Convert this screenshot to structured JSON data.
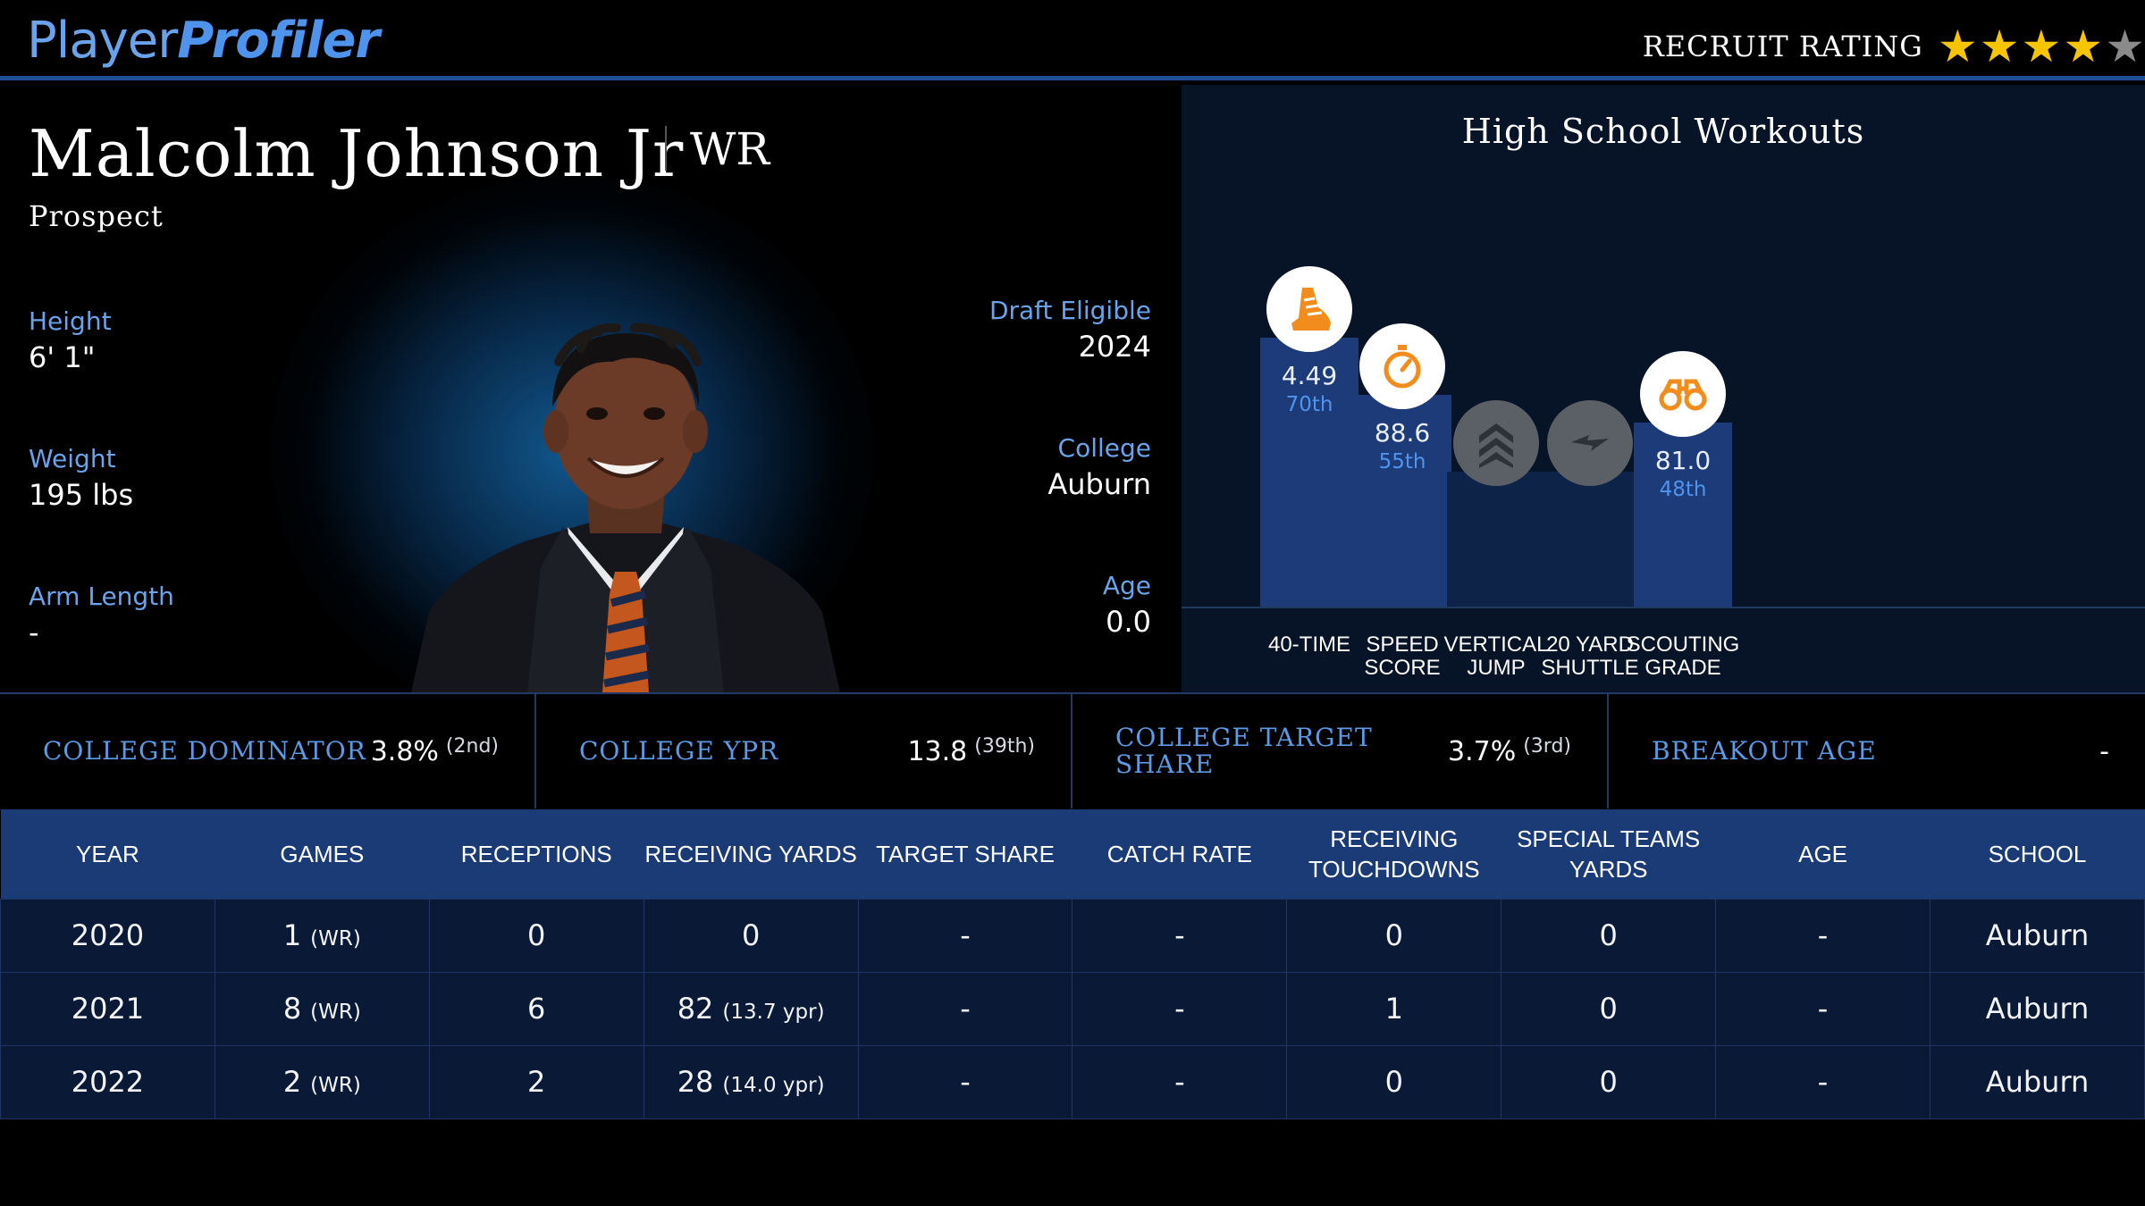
{
  "header": {
    "logo_part1": "Player",
    "logo_part2": "Profiler",
    "rating_label": "RECRUIT RATING",
    "stars_filled": 4,
    "stars_total": 5,
    "star_color": "#f7c500"
  },
  "player": {
    "name": "Malcolm Johnson Jr",
    "position": "WR",
    "status": "Prospect",
    "height_label": "Height",
    "height": "6' 1\"",
    "weight_label": "Weight",
    "weight": "195 lbs",
    "arm_label": "Arm Length",
    "arm": "-",
    "draft_label": "Draft Eligible",
    "draft": "2024",
    "college_label": "College",
    "college": "Auburn",
    "age_label": "Age",
    "age": "0.0"
  },
  "workouts": {
    "title": "High School Workouts",
    "accent": "#f28c1c",
    "bars": [
      {
        "label_line1": "40-TIME",
        "label_line2": "",
        "value": "4.49",
        "percentile": "70th",
        "percentile_num": 70,
        "icon": "shoe-icon",
        "active": true
      },
      {
        "label_line1": "SPEED",
        "label_line2": "SCORE",
        "value": "88.6",
        "percentile": "55th",
        "percentile_num": 55,
        "icon": "stopwatch-icon",
        "active": true
      },
      {
        "label_line1": "VERTICAL",
        "label_line2": "JUMP",
        "value": "",
        "percentile": "",
        "percentile_num": 35,
        "icon": "chevrons-up-icon",
        "active": false
      },
      {
        "label_line1": "20 YARD",
        "label_line2": "SHUTTLE",
        "value": "",
        "percentile": "",
        "percentile_num": 35,
        "icon": "lightning-icon",
        "active": false
      },
      {
        "label_line1": "SCOUTING",
        "label_line2": "GRADE",
        "value": "81.0",
        "percentile": "48th",
        "percentile_num": 48,
        "icon": "binoculars-icon",
        "active": true
      }
    ]
  },
  "metrics": [
    {
      "label": "COLLEGE DOMINATOR",
      "value": "3.8%",
      "rank": "(2nd)"
    },
    {
      "label": "COLLEGE YPR",
      "value": "13.8",
      "rank": "(39th)"
    },
    {
      "label": "COLLEGE TARGET SHARE",
      "value": "3.7%",
      "rank": "(3rd)"
    },
    {
      "label": "BREAKOUT AGE",
      "value": "-",
      "rank": ""
    }
  ],
  "table": {
    "headers": [
      "YEAR",
      "GAMES",
      "RECEPTIONS",
      "RECEIVING YARDS",
      "TARGET SHARE",
      "CATCH RATE",
      "RECEIVING TOUCHDOWNS",
      "SPECIAL TEAMS YARDS",
      "AGE",
      "SCHOOL"
    ],
    "rows": [
      [
        {
          "v": "2020"
        },
        {
          "v": "1",
          "s": "(WR)"
        },
        {
          "v": "0"
        },
        {
          "v": "0"
        },
        {
          "v": "-"
        },
        {
          "v": "-"
        },
        {
          "v": "0"
        },
        {
          "v": "0"
        },
        {
          "v": "-"
        },
        {
          "v": "Auburn"
        }
      ],
      [
        {
          "v": "2021"
        },
        {
          "v": "8",
          "s": "(WR)"
        },
        {
          "v": "6"
        },
        {
          "v": "82",
          "s": "(13.7 ypr)"
        },
        {
          "v": "-"
        },
        {
          "v": "-"
        },
        {
          "v": "1"
        },
        {
          "v": "0"
        },
        {
          "v": "-"
        },
        {
          "v": "Auburn"
        }
      ],
      [
        {
          "v": "2022"
        },
        {
          "v": "2",
          "s": "(WR)"
        },
        {
          "v": "2"
        },
        {
          "v": "28",
          "s": "(14.0 ypr)"
        },
        {
          "v": "-"
        },
        {
          "v": "-"
        },
        {
          "v": "0"
        },
        {
          "v": "0"
        },
        {
          "v": "-"
        },
        {
          "v": "Auburn"
        }
      ]
    ]
  }
}
